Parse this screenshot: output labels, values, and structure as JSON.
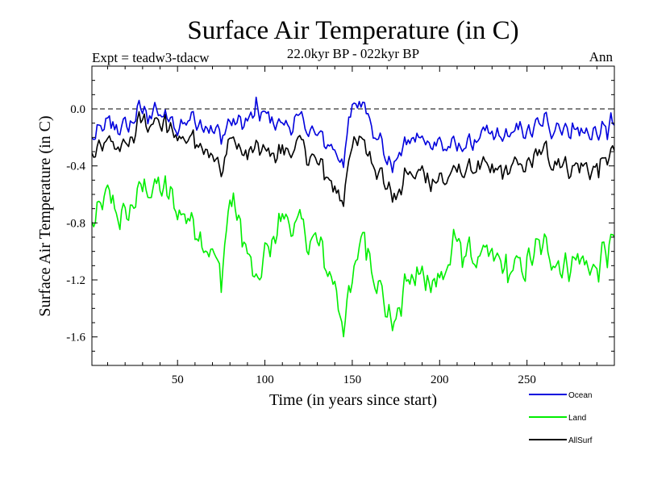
{
  "chart_data": {
    "type": "line",
    "title": "Surface Air Temperature (in C)",
    "subtitle_left": "Expt = teadw3-tdacw",
    "subtitle_center": "22.0kyr BP - 022kyr BP",
    "subtitle_right": "Ann",
    "xlabel": "Time (in years since start)",
    "ylabel": "Surface Air Temperature (in C)",
    "xlim": [
      1,
      300
    ],
    "ylim": [
      -1.8,
      0.3
    ],
    "xticks": [
      50,
      100,
      150,
      200,
      250
    ],
    "xticklabels": [
      "50",
      "100",
      "150",
      "200",
      "250"
    ],
    "yticks": [
      0.0,
      -0.4,
      -0.8,
      -1.2,
      -1.6
    ],
    "yticklabels": [
      "0.0",
      "-0.4",
      "-0.8",
      "-1.2",
      "-1.6"
    ],
    "zero_line": "dashed",
    "legend_position": "bottom-right",
    "x_anchor": [
      1,
      10,
      20,
      30,
      40,
      50,
      60,
      70,
      75,
      80,
      90,
      95,
      100,
      110,
      120,
      130,
      140,
      145,
      150,
      155,
      160,
      170,
      175,
      180,
      190,
      200,
      210,
      220,
      230,
      240,
      250,
      260,
      270,
      280,
      290,
      300
    ],
    "noise_amplitude": 0.09,
    "series": [
      {
        "name": "Ocean",
        "color": "#0000dd",
        "values": [
          -0.25,
          -0.1,
          -0.15,
          0.0,
          -0.05,
          -0.12,
          -0.05,
          -0.15,
          -0.18,
          -0.1,
          -0.1,
          -0.02,
          -0.05,
          -0.12,
          -0.08,
          -0.2,
          -0.28,
          -0.35,
          0.0,
          0.08,
          -0.05,
          -0.35,
          -0.4,
          -0.25,
          -0.2,
          -0.25,
          -0.28,
          -0.22,
          -0.2,
          -0.18,
          -0.15,
          -0.1,
          -0.12,
          -0.15,
          -0.18,
          -0.1
        ]
      },
      {
        "name": "Land",
        "color": "#00ee00",
        "values": [
          -0.85,
          -0.6,
          -0.8,
          -0.55,
          -0.55,
          -0.7,
          -0.8,
          -1.0,
          -1.2,
          -0.6,
          -1.0,
          -1.25,
          -1.05,
          -0.75,
          -0.85,
          -0.95,
          -1.25,
          -1.5,
          -1.25,
          -0.85,
          -1.0,
          -1.45,
          -1.5,
          -1.25,
          -1.15,
          -1.2,
          -0.95,
          -1.05,
          -1.05,
          -1.15,
          -1.1,
          -0.95,
          -1.1,
          -1.05,
          -1.15,
          -0.9
        ]
      },
      {
        "name": "AllSurf",
        "color": "#000000",
        "values": [
          -0.35,
          -0.25,
          -0.28,
          -0.08,
          -0.1,
          -0.2,
          -0.2,
          -0.32,
          -0.45,
          -0.2,
          -0.35,
          -0.3,
          -0.3,
          -0.3,
          -0.25,
          -0.38,
          -0.55,
          -0.6,
          -0.28,
          -0.18,
          -0.3,
          -0.55,
          -0.65,
          -0.45,
          -0.45,
          -0.5,
          -0.45,
          -0.4,
          -0.45,
          -0.42,
          -0.4,
          -0.3,
          -0.38,
          -0.4,
          -0.42,
          -0.3
        ]
      }
    ]
  }
}
